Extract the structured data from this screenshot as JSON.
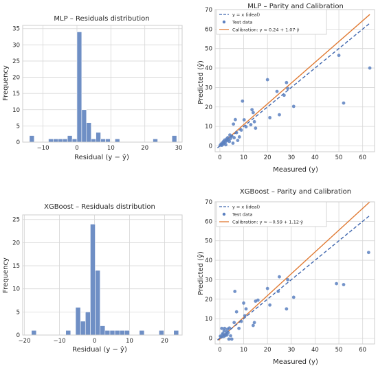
{
  "colors": {
    "bar": "#6f8fc5",
    "bar_edge": "#ffffff",
    "scatter": "#5b80c0",
    "ideal": "#3f66ad",
    "calibration": "#e07a33",
    "grid": "#d6d6d6",
    "frame": "#cccccc"
  },
  "chart_data": [
    {
      "id": "mlp_hist",
      "type": "bar",
      "title": "MLP – Residuals distribution",
      "xlabel": "Residual (y − ŷ)",
      "ylabel": "Frequency",
      "xlim": [
        -16,
        31
      ],
      "ylim": [
        0,
        36
      ],
      "xticks": [
        -10,
        0,
        10,
        20,
        30
      ],
      "yticks": [
        0,
        5,
        10,
        15,
        20,
        25,
        30,
        35
      ],
      "grid": true,
      "bins": [
        {
          "x0": -14.0,
          "x1": -12.6,
          "value": 2
        },
        {
          "x0": -8.4,
          "x1": -7.0,
          "value": 1
        },
        {
          "x0": -7.0,
          "x1": -5.6,
          "value": 1
        },
        {
          "x0": -5.6,
          "x1": -4.2,
          "value": 1
        },
        {
          "x0": -4.2,
          "x1": -2.8,
          "value": 1
        },
        {
          "x0": -2.8,
          "x1": -1.4,
          "value": 2
        },
        {
          "x0": -1.4,
          "x1": 0.0,
          "value": 1
        },
        {
          "x0": 0.0,
          "x1": 1.4,
          "value": 34
        },
        {
          "x0": 1.4,
          "x1": 2.8,
          "value": 10
        },
        {
          "x0": 2.8,
          "x1": 4.2,
          "value": 6
        },
        {
          "x0": 4.2,
          "x1": 5.6,
          "value": 1
        },
        {
          "x0": 5.6,
          "x1": 7.0,
          "value": 3
        },
        {
          "x0": 7.0,
          "x1": 8.4,
          "value": 1
        },
        {
          "x0": 8.4,
          "x1": 9.8,
          "value": 1
        },
        {
          "x0": 11.2,
          "x1": 12.6,
          "value": 1
        },
        {
          "x0": 22.4,
          "x1": 23.8,
          "value": 1
        },
        {
          "x0": 28.0,
          "x1": 29.4,
          "value": 2
        }
      ]
    },
    {
      "id": "mlp_parity",
      "type": "scatter",
      "title": "MLP – Parity and Calibration",
      "xlabel": "Measured (y)",
      "ylabel": "Predicted (ŷ)",
      "xlim": [
        -2,
        65
      ],
      "ylim": [
        -3,
        70
      ],
      "xticks": [
        0,
        10,
        20,
        30,
        40,
        50,
        60
      ],
      "yticks": [
        0,
        10,
        20,
        30,
        40,
        50,
        60,
        70
      ],
      "grid": true,
      "legend_position": "top-left",
      "legend": [
        "y = x (ideal)",
        "Test data",
        "Calibration: y ≈ 0.24 + 1.07·ŷ"
      ],
      "ideal_line": {
        "x": [
          -1,
          63
        ],
        "y": [
          -1,
          63
        ]
      },
      "calibration_line": {
        "x": [
          -0.5,
          63
        ],
        "y": [
          -0.3,
          67.5
        ]
      },
      "series": [
        {
          "name": "Test data",
          "points": [
            [
              0.2,
              0.4
            ],
            [
              0.5,
              0.9
            ],
            [
              0.8,
              0.3
            ],
            [
              1.0,
              1.5
            ],
            [
              1.3,
              0.8
            ],
            [
              1.5,
              2.2
            ],
            [
              1.8,
              1.4
            ],
            [
              2.0,
              3.0
            ],
            [
              2.2,
              1.9
            ],
            [
              2.5,
              0.6
            ],
            [
              2.8,
              3.5
            ],
            [
              3.0,
              2.6
            ],
            [
              3.3,
              4.2
            ],
            [
              3.6,
              3.1
            ],
            [
              4.0,
              2.3
            ],
            [
              4.2,
              5.6
            ],
            [
              4.5,
              3.8
            ],
            [
              5.0,
              5.0
            ],
            [
              5.5,
              1.4
            ],
            [
              5.7,
              11.2
            ],
            [
              6.0,
              4.2
            ],
            [
              6.5,
              13.5
            ],
            [
              7.0,
              6.8
            ],
            [
              7.5,
              2.8
            ],
            [
              8.2,
              4.6
            ],
            [
              9.0,
              8.1
            ],
            [
              9.5,
              23.0
            ],
            [
              10.2,
              13.4
            ],
            [
              11.0,
              9.8
            ],
            [
              13.0,
              10.9
            ],
            [
              13.5,
              18.6
            ],
            [
              14.0,
              17.1
            ],
            [
              14.5,
              12.4
            ],
            [
              15.0,
              9.1
            ],
            [
              20.0,
              34.0
            ],
            [
              21.0,
              14.5
            ],
            [
              24.0,
              28.0
            ],
            [
              25.0,
              16.0
            ],
            [
              27.0,
              26.0
            ],
            [
              28.0,
              32.5
            ],
            [
              28.5,
              29.5
            ],
            [
              31.0,
              20.3
            ],
            [
              50.0,
              46.5
            ],
            [
              52.0,
              22.0
            ],
            [
              63.0,
              40.0
            ]
          ]
        }
      ]
    },
    {
      "id": "xgb_hist",
      "type": "bar",
      "title": "XGBoost – Residuals distribution",
      "xlabel": "Residual (y − ŷ)",
      "ylabel": "Frequency",
      "xlim": [
        -20.5,
        25
      ],
      "ylim": [
        0,
        26
      ],
      "xticks": [
        -20,
        -10,
        0,
        10,
        20
      ],
      "yticks": [
        0,
        5,
        10,
        15,
        20,
        25
      ],
      "grid": true,
      "bins": [
        {
          "x0": -18.0,
          "x1": -16.6,
          "value": 1
        },
        {
          "x0": -8.2,
          "x1": -6.8,
          "value": 1
        },
        {
          "x0": -5.4,
          "x1": -4.0,
          "value": 6
        },
        {
          "x0": -4.0,
          "x1": -2.6,
          "value": 3
        },
        {
          "x0": -2.6,
          "x1": -1.2,
          "value": 5
        },
        {
          "x0": -1.2,
          "x1": 0.2,
          "value": 24
        },
        {
          "x0": 0.2,
          "x1": 1.6,
          "value": 14
        },
        {
          "x0": 1.6,
          "x1": 3.0,
          "value": 2
        },
        {
          "x0": 3.0,
          "x1": 4.4,
          "value": 1
        },
        {
          "x0": 4.4,
          "x1": 5.8,
          "value": 1
        },
        {
          "x0": 5.8,
          "x1": 7.2,
          "value": 1
        },
        {
          "x0": 7.2,
          "x1": 8.6,
          "value": 1
        },
        {
          "x0": 8.6,
          "x1": 10.0,
          "value": 1
        },
        {
          "x0": 12.8,
          "x1": 14.2,
          "value": 1
        },
        {
          "x0": 18.4,
          "x1": 19.8,
          "value": 1
        },
        {
          "x0": 22.6,
          "x1": 24.0,
          "value": 1
        }
      ]
    },
    {
      "id": "xgb_parity",
      "type": "scatter",
      "title": "XGBoost – Parity and Calibration",
      "xlabel": "Measured (y)",
      "ylabel": "Predicted (ŷ)",
      "xlim": [
        -2,
        65
      ],
      "ylim": [
        -3,
        70
      ],
      "xticks": [
        0,
        10,
        20,
        30,
        40,
        50,
        60
      ],
      "yticks": [
        0,
        10,
        20,
        30,
        40,
        50,
        60,
        70
      ],
      "grid": true,
      "legend_position": "top-left",
      "legend": [
        "y = x (ideal)",
        "Test data",
        "Calibration: y ≈ −0.59 + 1.12·ŷ"
      ],
      "ideal_line": {
        "x": [
          -1,
          63
        ],
        "y": [
          -1,
          63
        ]
      },
      "calibration_line": {
        "x": [
          -0.5,
          63
        ],
        "y": [
          -1.1,
          70
        ]
      },
      "series": [
        {
          "name": "Test data",
          "points": [
            [
              0.2,
              1.0
            ],
            [
              0.5,
              0.5
            ],
            [
              0.8,
              5.0
            ],
            [
              1.0,
              1.8
            ],
            [
              1.3,
              2.5
            ],
            [
              1.5,
              0.8
            ],
            [
              1.8,
              3.8
            ],
            [
              2.0,
              5.0
            ],
            [
              2.2,
              1.2
            ],
            [
              2.5,
              2.0
            ],
            [
              2.8,
              3.2
            ],
            [
              3.0,
              1.6
            ],
            [
              3.2,
              4.6
            ],
            [
              3.5,
              2.8
            ],
            [
              3.8,
              -0.5
            ],
            [
              4.0,
              5.2
            ],
            [
              4.5,
              1.2
            ],
            [
              5.0,
              -0.5
            ],
            [
              6.0,
              8.0
            ],
            [
              6.3,
              24.0
            ],
            [
              7.0,
              13.5
            ],
            [
              8.0,
              5.0
            ],
            [
              9.0,
              8.6
            ],
            [
              10.0,
              18.0
            ],
            [
              10.5,
              11.5
            ],
            [
              11.0,
              15.0
            ],
            [
              14.0,
              6.5
            ],
            [
              14.5,
              8.0
            ],
            [
              15.0,
              19.0
            ],
            [
              16.0,
              19.5
            ],
            [
              20.0,
              25.5
            ],
            [
              21.0,
              17.0
            ],
            [
              24.5,
              24.0
            ],
            [
              25.0,
              31.5
            ],
            [
              28.0,
              15.0
            ],
            [
              28.5,
              30.0
            ],
            [
              31.0,
              21.0
            ],
            [
              49.0,
              28.0
            ],
            [
              52.0,
              27.5
            ],
            [
              62.5,
              44.0
            ]
          ]
        }
      ]
    }
  ]
}
